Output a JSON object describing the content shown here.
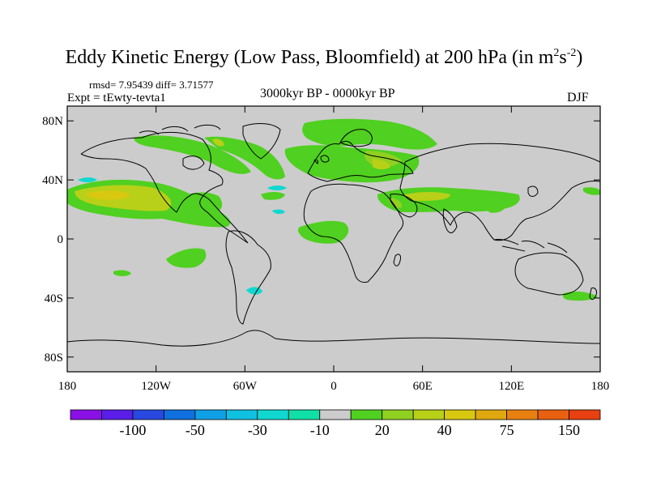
{
  "title": {
    "prefix": "Eddy Kinetic Energy (Low Pass, Bloomfield) at 200 hPa (in m",
    "sup1": "2",
    "mid": "s",
    "sup2": "-2",
    "suffix": ")"
  },
  "stats": "rmsd= 7.95439 diff= 3.71577",
  "experiment": "Expt = tEwty-tevta1",
  "period": "3000kyr BP - 0000kyr BP",
  "season": "DJF",
  "map": {
    "lat_ticks": [
      {
        "lat": 80,
        "label": "80N"
      },
      {
        "lat": 40,
        "label": "40N"
      },
      {
        "lat": 0,
        "label": "0"
      },
      {
        "lat": -40,
        "label": "40S"
      },
      {
        "lat": -80,
        "label": "80S"
      }
    ],
    "lon_ticks": [
      {
        "lon": -180,
        "label": "180"
      },
      {
        "lon": -120,
        "label": "120W"
      },
      {
        "lon": -60,
        "label": "60W"
      },
      {
        "lon": 0,
        "label": "0"
      },
      {
        "lon": 60,
        "label": "60E"
      },
      {
        "lon": 120,
        "label": "120E"
      },
      {
        "lon": 180,
        "label": "180"
      }
    ],
    "land_color": "#cccccc"
  },
  "colorbar": {
    "colors": [
      "#8a10e6",
      "#5a1ee8",
      "#2848e0",
      "#1070e0",
      "#10a0e6",
      "#10c0e0",
      "#10d8d0",
      "#10e0a8",
      "#cccccc",
      "#50d020",
      "#90d020",
      "#b8d018",
      "#d8c810",
      "#e0a810",
      "#e88010",
      "#e86010",
      "#e84010"
    ],
    "labels": [
      "-100",
      "-50",
      "-30",
      "-10",
      "20",
      "40",
      "75",
      "150"
    ]
  }
}
